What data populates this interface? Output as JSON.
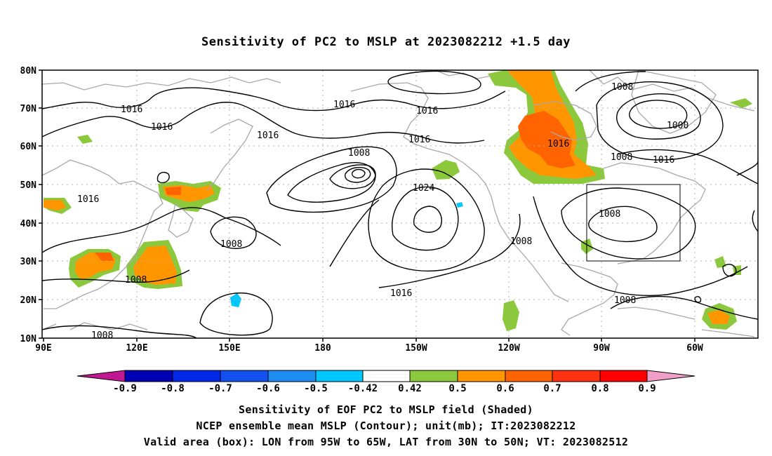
{
  "title": "Sensitivity of PC2 to MSLP at 2023082212 +1.5 day",
  "map": {
    "lat_ticks": [
      "80N",
      "70N",
      "60N",
      "50N",
      "40N",
      "30N",
      "20N",
      "10N"
    ],
    "lon_ticks": [
      "90E",
      "120E",
      "150E",
      "180",
      "150W",
      "120W",
      "90W",
      "60W"
    ],
    "contour_labels": [
      "1016",
      "1016",
      "1016",
      "1016",
      "1016",
      "1008",
      "1008",
      "1000",
      "1016",
      "1016",
      "1008",
      "1016",
      "1024",
      "1016",
      "1008",
      "1008",
      "1008",
      "1008",
      "1016",
      "1008",
      "1008"
    ],
    "colorbar_labels": [
      "-0.9",
      "-0.8",
      "-0.7",
      "-0.6",
      "-0.5",
      "-0.42",
      "0.42",
      "0.5",
      "0.6",
      "0.7",
      "0.8",
      "0.9"
    ],
    "colors": {
      "below": "#c01890",
      "c1": "#0000b4",
      "c2": "#0028e6",
      "c3": "#1450f0",
      "c4": "#1e8cf0",
      "c5": "#00c8ff",
      "c6": "#ffffff",
      "c7": "#8cc83c",
      "c8": "#ff9600",
      "c9": "#ff6400",
      "c10": "#ff3214",
      "c11": "#ff0000",
      "above": "#f0a0c8",
      "coast": "#a8a8a8",
      "contour": "#000000"
    }
  },
  "captions": {
    "line1": "Sensitivity of EOF PC2 to MSLP field (Shaded)",
    "line2": "NCEP ensemble mean MSLP (Contour); unit(mb); IT:2023082212",
    "line3": "Valid area (box): LON from 95W to 65W, LAT from 30N to 50N; VT: 2023082512"
  }
}
